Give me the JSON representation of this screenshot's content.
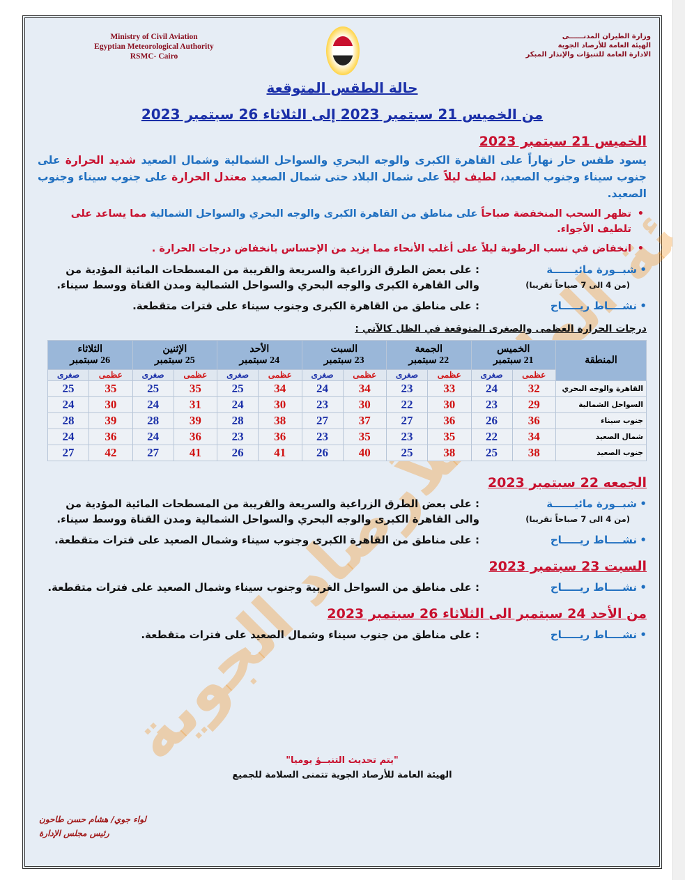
{
  "header": {
    "en": [
      "Ministry of Civil Aviation",
      "Egyptian Meteorological Authority",
      "RSMC- Cairo"
    ],
    "ar": [
      "وزارة الطيران المدنــــــى",
      "الهيئة العامة للأرصاد الجوية",
      "الادارة العامة للتنبؤات والإنذار المبكر"
    ],
    "title": "حالة الطقس المتوقعة",
    "subtitle": "من الخميس 21 سبتمبر 2023 إلى الثلاثاء 26 سبتمبر 2023"
  },
  "watermark": "الهيئة العامة للأرصاد الجوية",
  "day1": {
    "title": "الخميس 21 سبتمبر 2023",
    "para": [
      "يسود طقس حار نهاراً على القاهرة الكبرى والوجه البحري والسواحل الشمالية وشمال الصعيد",
      " شديد الحرارة",
      " على جنوب سيناء وجنوب الصعيد، ",
      "لطيف ليلاً",
      " على شمال البلاد حتى شمال الصعيد ",
      "معتدل الحرارة",
      " على جنوب سيناء وجنوب الصعيد."
    ],
    "bullet1": [
      "تظهر السحب المنخفضة صباحاً",
      " على مناطق من القاهرة الكبرى والوجه البحري والسواحل الشمالية",
      " مما يساعد على تلطيف الأجواء."
    ],
    "bullet2": "انخفاض في نسب الرطوبة ليلاً على أغلب الأنحاء مما يزيد من الإحساس بانخفاض درجات الحرارة .",
    "fog": {
      "label": "شبــورة مائيــــــة",
      "sub": "(من 4 الى 7 صباحاً تقريبا)",
      "text": ": على بعض الطرق الزراعية والسريعة والقريبة من المسطحات المائية المؤدية من والى القاهرة الكبرى والوجه البحري والسواحل الشمالية ومدن القناة ووسط سيناء."
    },
    "wind": {
      "label": "نشــــاط ريـــــاح",
      "text": ": على مناطق من القاهرة الكبرى وجنوب سيناء على فترات متقطعة."
    }
  },
  "table": {
    "heading": "درجات الحرارة العظمى والصغرى المتوقعة في الظل كالآتي :",
    "region_header": "المنطقة",
    "max_label": "عظمى",
    "min_label": "صغرى",
    "days": [
      {
        "name": "الخميس",
        "date": "21 سبتمبر"
      },
      {
        "name": "الجمعة",
        "date": "22 سبتمبر"
      },
      {
        "name": "السبت",
        "date": "23 سبتمبر"
      },
      {
        "name": "الأحد",
        "date": "24 سبتمبر"
      },
      {
        "name": "الإثنين",
        "date": "25 سبتمبر"
      },
      {
        "name": "الثلاثاء",
        "date": "26 سبتمبر"
      }
    ],
    "rows": [
      {
        "region": "القاهرة والوجه البحري",
        "values": [
          [
            32,
            24
          ],
          [
            33,
            23
          ],
          [
            34,
            24
          ],
          [
            34,
            25
          ],
          [
            35,
            25
          ],
          [
            35,
            25
          ]
        ]
      },
      {
        "region": "السواحل الشمالية",
        "values": [
          [
            29,
            23
          ],
          [
            30,
            22
          ],
          [
            30,
            23
          ],
          [
            30,
            24
          ],
          [
            31,
            24
          ],
          [
            30,
            24
          ]
        ]
      },
      {
        "region": "جنوب سيناء",
        "values": [
          [
            36,
            26
          ],
          [
            36,
            27
          ],
          [
            37,
            27
          ],
          [
            38,
            28
          ],
          [
            39,
            28
          ],
          [
            39,
            28
          ]
        ]
      },
      {
        "region": "شمال الصعيد",
        "values": [
          [
            34,
            22
          ],
          [
            35,
            23
          ],
          [
            35,
            23
          ],
          [
            36,
            23
          ],
          [
            36,
            24
          ],
          [
            36,
            24
          ]
        ]
      },
      {
        "region": "جنوب الصعيد",
        "values": [
          [
            38,
            25
          ],
          [
            38,
            25
          ],
          [
            40,
            26
          ],
          [
            41,
            26
          ],
          [
            41,
            27
          ],
          [
            42,
            27
          ]
        ]
      }
    ]
  },
  "day2": {
    "title": "الجمعه 22 سبتمبر 2023",
    "fog": {
      "label": "شبــورة مائيــــــة",
      "sub": "(من 4 الى 7 صباحاً تقريبا)",
      "text": ": على بعض الطرق الزراعية والسريعة والقريبة من المسطحات المائية المؤدية من والى القاهرة الكبرى والوجه البحري والسواحل الشمالية ومدن القناة ووسط سيناء."
    },
    "wind": {
      "label": "نشــــاط ريـــــاح",
      "text": ": على مناطق من القاهرة الكبرى وجنوب سيناء وشمال الصعيد على فترات متقطعة."
    }
  },
  "day3": {
    "title": "السبت 23 سبتمبر 2023",
    "wind": {
      "label": "نشــــاط ريـــــاح",
      "text": ": على مناطق من السواحل الغربية وجنوب سيناء وشمال الصعيد على فترات متقطعة."
    }
  },
  "day4": {
    "title": "من الأحد 24 سبتمبر الى الثلاثاء 26 سبتمبر 2023",
    "wind": {
      "label": "نشــــاط ريـــــاح",
      "text": ": على مناطق من جنوب سيناء وشمال الصعيد على فترات متقطعة."
    }
  },
  "footer": {
    "update": "\"يتم تحديث التنبــؤ يوميا\"",
    "wish": "الهيئة العامة للأرصاد الجوية تتمنى السلامة للجميع"
  },
  "signature": {
    "name": "لواء جوي/ هشام حسن طاحون",
    "title": "رئيس مجلس الإدارة"
  }
}
